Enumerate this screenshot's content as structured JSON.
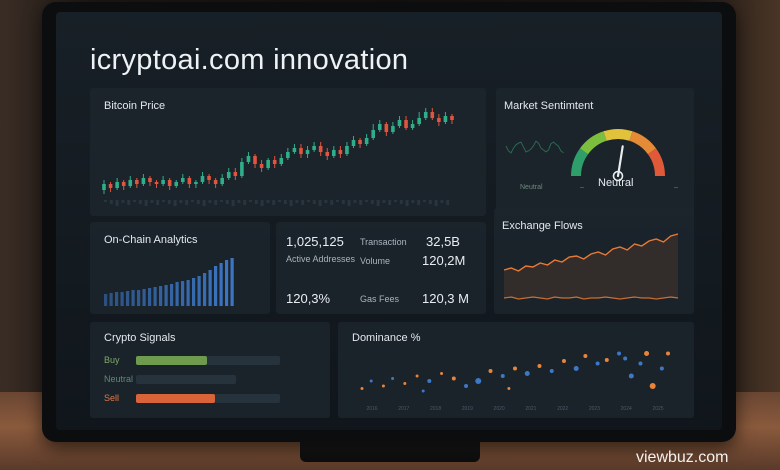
{
  "title": "icryptoai.com innovation",
  "bitcoin_price": {
    "title": "Bitcoin Price",
    "candles": [
      {
        "o": 178,
        "c": 172,
        "h": 182,
        "l": 168
      },
      {
        "o": 172,
        "c": 176,
        "h": 180,
        "l": 170
      },
      {
        "o": 176,
        "c": 170,
        "h": 178,
        "l": 166
      },
      {
        "o": 170,
        "c": 174,
        "h": 178,
        "l": 168
      },
      {
        "o": 174,
        "c": 168,
        "h": 176,
        "l": 164
      },
      {
        "o": 168,
        "c": 172,
        "h": 176,
        "l": 166
      },
      {
        "o": 172,
        "c": 166,
        "h": 174,
        "l": 162
      },
      {
        "o": 166,
        "c": 170,
        "h": 174,
        "l": 164
      },
      {
        "o": 170,
        "c": 172,
        "h": 176,
        "l": 168
      },
      {
        "o": 172,
        "c": 168,
        "h": 174,
        "l": 164
      },
      {
        "o": 168,
        "c": 174,
        "h": 178,
        "l": 166
      },
      {
        "o": 174,
        "c": 170,
        "h": 176,
        "l": 168
      },
      {
        "o": 170,
        "c": 166,
        "h": 172,
        "l": 162
      },
      {
        "o": 166,
        "c": 172,
        "h": 176,
        "l": 164
      },
      {
        "o": 172,
        "c": 170,
        "h": 176,
        "l": 168
      },
      {
        "o": 170,
        "c": 164,
        "h": 172,
        "l": 160
      },
      {
        "o": 164,
        "c": 168,
        "h": 172,
        "l": 162
      },
      {
        "o": 168,
        "c": 172,
        "h": 176,
        "l": 166
      },
      {
        "o": 172,
        "c": 166,
        "h": 174,
        "l": 162
      },
      {
        "o": 166,
        "c": 160,
        "h": 168,
        "l": 156
      },
      {
        "o": 160,
        "c": 164,
        "h": 168,
        "l": 156
      },
      {
        "o": 164,
        "c": 150,
        "h": 166,
        "l": 146
      },
      {
        "o": 150,
        "c": 144,
        "h": 152,
        "l": 140
      },
      {
        "o": 144,
        "c": 152,
        "h": 156,
        "l": 142
      },
      {
        "o": 152,
        "c": 156,
        "h": 160,
        "l": 148
      },
      {
        "o": 156,
        "c": 148,
        "h": 158,
        "l": 146
      },
      {
        "o": 148,
        "c": 152,
        "h": 156,
        "l": 144
      },
      {
        "o": 152,
        "c": 146,
        "h": 154,
        "l": 142
      },
      {
        "o": 146,
        "c": 140,
        "h": 148,
        "l": 136
      },
      {
        "o": 140,
        "c": 136,
        "h": 142,
        "l": 132
      },
      {
        "o": 136,
        "c": 142,
        "h": 146,
        "l": 132
      },
      {
        "o": 142,
        "c": 138,
        "h": 146,
        "l": 134
      },
      {
        "o": 138,
        "c": 134,
        "h": 140,
        "l": 130
      },
      {
        "o": 134,
        "c": 140,
        "h": 144,
        "l": 130
      },
      {
        "o": 140,
        "c": 144,
        "h": 148,
        "l": 136
      },
      {
        "o": 144,
        "c": 138,
        "h": 146,
        "l": 134
      },
      {
        "o": 138,
        "c": 142,
        "h": 146,
        "l": 134
      },
      {
        "o": 142,
        "c": 134,
        "h": 144,
        "l": 130
      },
      {
        "o": 134,
        "c": 128,
        "h": 136,
        "l": 124
      },
      {
        "o": 128,
        "c": 132,
        "h": 136,
        "l": 126
      },
      {
        "o": 132,
        "c": 126,
        "h": 134,
        "l": 122
      },
      {
        "o": 126,
        "c": 118,
        "h": 128,
        "l": 112
      },
      {
        "o": 118,
        "c": 112,
        "h": 120,
        "l": 108
      },
      {
        "o": 112,
        "c": 120,
        "h": 124,
        "l": 110
      },
      {
        "o": 120,
        "c": 114,
        "h": 122,
        "l": 110
      },
      {
        "o": 114,
        "c": 108,
        "h": 116,
        "l": 104
      },
      {
        "o": 108,
        "c": 116,
        "h": 118,
        "l": 104
      },
      {
        "o": 116,
        "c": 112,
        "h": 118,
        "l": 108
      },
      {
        "o": 112,
        "c": 106,
        "h": 114,
        "l": 100
      },
      {
        "o": 106,
        "c": 100,
        "h": 108,
        "l": 96
      },
      {
        "o": 100,
        "c": 106,
        "h": 108,
        "l": 96
      },
      {
        "o": 106,
        "c": 110,
        "h": 114,
        "l": 102
      },
      {
        "o": 110,
        "c": 104,
        "h": 112,
        "l": 100
      },
      {
        "o": 104,
        "c": 108,
        "h": 112,
        "l": 102
      }
    ],
    "up_color": "#2fae8a",
    "down_color": "#e0553d"
  },
  "market_sentiment": {
    "title": "Market Sentimtent",
    "value_label": "Neutral",
    "small_label": "Neutral",
    "level": 0.55,
    "colors": [
      "#2e9e6b",
      "#7cbf3f",
      "#e2c23b",
      "#e58a35",
      "#e05a3a"
    ]
  },
  "onchain": {
    "title": "On-Chain Analytics",
    "bars": [
      12,
      13,
      14,
      14,
      15,
      16,
      16,
      17,
      18,
      19,
      20,
      21,
      22,
      24,
      25,
      26,
      28,
      30,
      33,
      36,
      40,
      43,
      46,
      48
    ],
    "bar_color": "#3d78c6"
  },
  "metrics": {
    "active_addresses_value": "1,025,125",
    "active_addresses_label": "Active Addresses",
    "transaction_label": "Transaction",
    "transaction_value": "32,5B",
    "volume_label": "Volume",
    "volume_value": "120,2M",
    "pct_value": "120,3%",
    "gas_label": "Gas Fees",
    "gas_value": "120,3 M"
  },
  "exchange_flows": {
    "title": "Exchange Flows",
    "upper_series": [
      20,
      22,
      19,
      24,
      23,
      27,
      25,
      30,
      28,
      33,
      34,
      31,
      36,
      38,
      35,
      41,
      43,
      40,
      46,
      44,
      49,
      51,
      48,
      54,
      56
    ],
    "lower_series": [
      6,
      7,
      5,
      6,
      7,
      6,
      5,
      7,
      6,
      6,
      7,
      5,
      6,
      6,
      7,
      6,
      5,
      6,
      7,
      6,
      6,
      5,
      6,
      7,
      6
    ],
    "line_color": "#e87a35"
  },
  "crypto_signals": {
    "title": "Crypto Signals",
    "rows": [
      {
        "label": "Buy",
        "label_color": "#7faa6a",
        "fill": 0.49,
        "color": "#6e9b4e"
      },
      {
        "label": "Neutral",
        "label_color": "#5c8c72",
        "fill": 0.0,
        "color": "#3b5a4a"
      },
      {
        "label": "Sell",
        "label_color": "#e57a44",
        "fill": 0.55,
        "color": "#d9643a"
      }
    ]
  },
  "dominance": {
    "title": "Dominance %",
    "x_ticks": [
      "2016",
      "2017",
      "2018",
      "2019",
      "2020",
      "2021",
      "2022",
      "2023",
      "2024",
      "2025"
    ],
    "points": [
      {
        "x": 0.0,
        "y": 0.15,
        "r": 1.5,
        "c": "#e8843a"
      },
      {
        "x": 0.03,
        "y": 0.3,
        "r": 1.5,
        "c": "#3d78c6"
      },
      {
        "x": 0.07,
        "y": 0.2,
        "r": 1.5,
        "c": "#e8843a"
      },
      {
        "x": 0.1,
        "y": 0.35,
        "r": 1.5,
        "c": "#3d78c6"
      },
      {
        "x": 0.14,
        "y": 0.25,
        "r": 1.5,
        "c": "#e8843a"
      },
      {
        "x": 0.18,
        "y": 0.4,
        "r": 1.5,
        "c": "#e8843a"
      },
      {
        "x": 0.22,
        "y": 0.3,
        "r": 2,
        "c": "#3d78c6"
      },
      {
        "x": 0.26,
        "y": 0.45,
        "r": 1.5,
        "c": "#e8843a"
      },
      {
        "x": 0.3,
        "y": 0.35,
        "r": 2,
        "c": "#e8843a"
      },
      {
        "x": 0.34,
        "y": 0.2,
        "r": 2,
        "c": "#3d78c6"
      },
      {
        "x": 0.38,
        "y": 0.3,
        "r": 3,
        "c": "#3d78c6"
      },
      {
        "x": 0.42,
        "y": 0.5,
        "r": 2,
        "c": "#e8843a"
      },
      {
        "x": 0.46,
        "y": 0.4,
        "r": 2,
        "c": "#3d78c6"
      },
      {
        "x": 0.5,
        "y": 0.55,
        "r": 2,
        "c": "#e8843a"
      },
      {
        "x": 0.54,
        "y": 0.45,
        "r": 2.5,
        "c": "#3d78c6"
      },
      {
        "x": 0.58,
        "y": 0.6,
        "r": 2,
        "c": "#e8843a"
      },
      {
        "x": 0.62,
        "y": 0.5,
        "r": 2,
        "c": "#3d78c6"
      },
      {
        "x": 0.66,
        "y": 0.7,
        "r": 2,
        "c": "#e8843a"
      },
      {
        "x": 0.7,
        "y": 0.55,
        "r": 2.5,
        "c": "#3d78c6"
      },
      {
        "x": 0.73,
        "y": 0.8,
        "r": 2,
        "c": "#e8843a"
      },
      {
        "x": 0.77,
        "y": 0.65,
        "r": 2,
        "c": "#3d78c6"
      },
      {
        "x": 0.8,
        "y": 0.72,
        "r": 2,
        "c": "#e8843a"
      },
      {
        "x": 0.84,
        "y": 0.85,
        "r": 2,
        "c": "#3d78c6"
      },
      {
        "x": 0.86,
        "y": 0.75,
        "r": 2,
        "c": "#3d78c6"
      },
      {
        "x": 0.88,
        "y": 0.4,
        "r": 2.5,
        "c": "#3d78c6"
      },
      {
        "x": 0.91,
        "y": 0.65,
        "r": 2,
        "c": "#3d78c6"
      },
      {
        "x": 0.93,
        "y": 0.85,
        "r": 2.5,
        "c": "#e8843a"
      },
      {
        "x": 0.95,
        "y": 0.2,
        "r": 3,
        "c": "#e8843a"
      },
      {
        "x": 0.98,
        "y": 0.55,
        "r": 2,
        "c": "#3d78c6"
      },
      {
        "x": 1.0,
        "y": 0.85,
        "r": 2,
        "c": "#e8843a"
      },
      {
        "x": 0.2,
        "y": 0.1,
        "r": 1.5,
        "c": "#3d78c6"
      },
      {
        "x": 0.48,
        "y": 0.15,
        "r": 1.5,
        "c": "#e8843a"
      }
    ]
  },
  "watermark": "viewbuz.com"
}
